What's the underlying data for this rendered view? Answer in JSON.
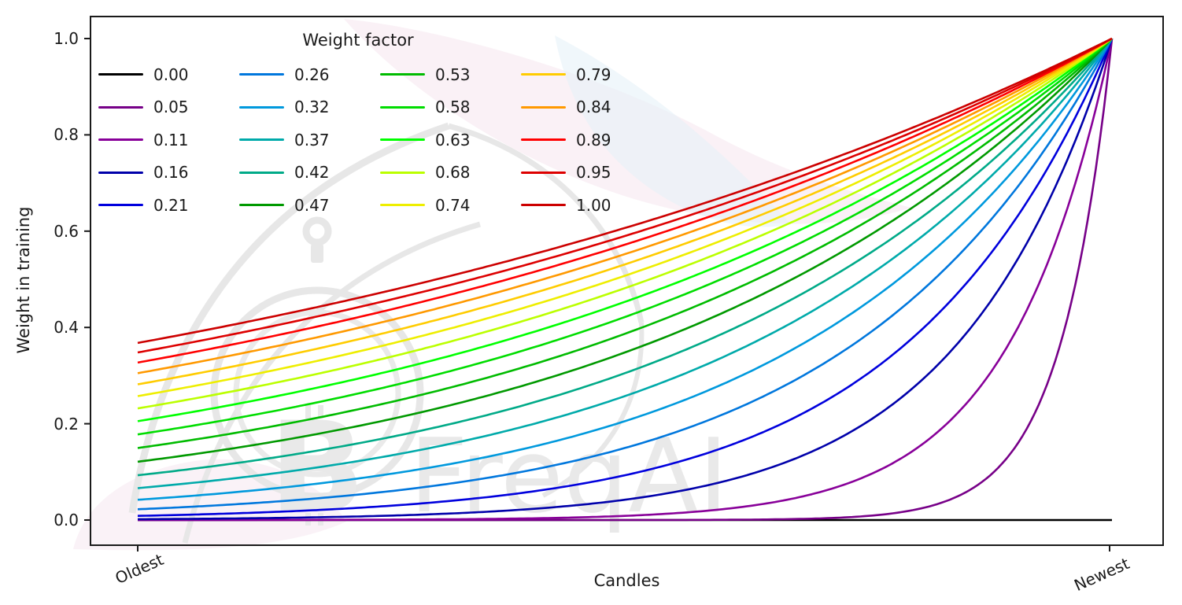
{
  "figure": {
    "background": "#ffffff",
    "watermark": {
      "text": "FreqAI",
      "bitcoin_symbol": "B",
      "text_color": "#e9e9e9",
      "logo_stroke_color": "#e7e7e7",
      "accent_pink": "#f5e3ee",
      "accent_blue": "#e3f0f7",
      "logo_name": "freqtrade-stopwatch-logo"
    }
  },
  "chart_data": {
    "type": "line",
    "title": "",
    "xlabel": "Candles",
    "ylabel": "Weight in training",
    "x_tick_labels": [
      "Oldest",
      "Newest"
    ],
    "y_ticks": [
      "0.0",
      "0.2",
      "0.4",
      "0.6",
      "0.8",
      "1.0"
    ],
    "ylim": [
      0,
      1
    ],
    "x_range": [
      0,
      1
    ],
    "grid": false,
    "legend": {
      "title": "Weight factor",
      "position": "upper left",
      "columns": 4,
      "rows": 5
    },
    "formula": "weight(x) = exp(-(1 - x) / factor) for x in [0,1] (x=0 oldest candle, x=1 newest); factor = 0 gives weight 0 everywhere",
    "sampled_x": [
      0,
      0.1,
      0.2,
      0.3,
      0.4,
      0.5,
      0.6,
      0.7,
      0.8,
      0.9,
      1.0
    ],
    "series": [
      {
        "label": "0.00",
        "factor": 0.0,
        "color": "#000000",
        "sampled_values": [
          0,
          0,
          0,
          0,
          0,
          0,
          0,
          0,
          0,
          0,
          0
        ]
      },
      {
        "label": "0.05",
        "factor": 0.0526,
        "color": "#770088",
        "sampled_values": [
          0,
          0,
          0,
          0,
          0,
          0.0001,
          0.0005,
          0.0033,
          0.0224,
          0.1496,
          1
        ]
      },
      {
        "label": "0.11",
        "factor": 0.1053,
        "color": "#880099",
        "sampled_values": [
          0.0001,
          0.0002,
          0.0005,
          0.0013,
          0.0033,
          0.0087,
          0.0224,
          0.0578,
          0.1496,
          0.3867,
          1
        ]
      },
      {
        "label": "0.16",
        "factor": 0.1579,
        "color": "#0000aa",
        "sampled_values": [
          0.0018,
          0.0033,
          0.0063,
          0.0119,
          0.0224,
          0.0421,
          0.0793,
          0.1496,
          0.2817,
          0.5309,
          1
        ]
      },
      {
        "label": "0.21",
        "factor": 0.2105,
        "color": "#0000dd",
        "sampled_values": [
          0.0087,
          0.0139,
          0.0224,
          0.036,
          0.0578,
          0.093,
          0.1496,
          0.2405,
          0.3867,
          0.6219,
          1
        ]
      },
      {
        "label": "0.26",
        "factor": 0.2632,
        "color": "#0077dd",
        "sampled_values": [
          0.0224,
          0.0327,
          0.0478,
          0.0699,
          0.1023,
          0.1496,
          0.2187,
          0.3198,
          0.4677,
          0.6839,
          1
        ]
      },
      {
        "label": "0.32",
        "factor": 0.3158,
        "color": "#0099dd",
        "sampled_values": [
          0.0421,
          0.0578,
          0.0793,
          0.1089,
          0.1496,
          0.2053,
          0.2817,
          0.3867,
          0.5309,
          0.7286,
          1
        ]
      },
      {
        "label": "0.37",
        "factor": 0.3684,
        "color": "#00aaaa",
        "sampled_values": [
          0.0663,
          0.0869,
          0.114,
          0.1496,
          0.1962,
          0.2574,
          0.3376,
          0.443,
          0.5811,
          0.7623,
          1
        ]
      },
      {
        "label": "0.42",
        "factor": 0.4211,
        "color": "#00aa88",
        "sampled_values": [
          0.093,
          0.118,
          0.1496,
          0.1897,
          0.2405,
          0.305,
          0.3867,
          0.4904,
          0.6219,
          0.7886,
          1
        ]
      },
      {
        "label": "0.47",
        "factor": 0.4737,
        "color": "#009900",
        "sampled_values": [
          0.1211,
          0.1496,
          0.1847,
          0.2281,
          0.2817,
          0.348,
          0.4298,
          0.5309,
          0.6556,
          0.8097,
          1
        ]
      },
      {
        "label": "0.53",
        "factor": 0.5263,
        "color": "#00bb00",
        "sampled_values": [
          0.1496,
          0.1809,
          0.2187,
          0.2645,
          0.3198,
          0.3867,
          0.4677,
          0.5655,
          0.6839,
          0.827,
          1
        ]
      },
      {
        "label": "0.58",
        "factor": 0.5789,
        "color": "#00dd00",
        "sampled_values": [
          0.1778,
          0.2113,
          0.2511,
          0.2984,
          0.3547,
          0.4216,
          0.5011,
          0.5956,
          0.7079,
          0.8414,
          1
        ]
      },
      {
        "label": "0.63",
        "factor": 0.6316,
        "color": "#00ff00",
        "sampled_values": [
          0.2053,
          0.2405,
          0.2817,
          0.3301,
          0.3867,
          0.4531,
          0.5309,
          0.6219,
          0.7286,
          0.8536,
          1
        ]
      },
      {
        "label": "0.68",
        "factor": 0.6842,
        "color": "#bbff00",
        "sampled_values": [
          0.2319,
          0.2684,
          0.3106,
          0.3595,
          0.4161,
          0.4815,
          0.5573,
          0.645,
          0.7466,
          0.864,
          1
        ]
      },
      {
        "label": "0.74",
        "factor": 0.7368,
        "color": "#eeee00",
        "sampled_values": [
          0.2574,
          0.2948,
          0.3376,
          0.3867,
          0.443,
          0.5073,
          0.5811,
          0.6656,
          0.7623,
          0.8731,
          1
        ]
      },
      {
        "label": "0.79",
        "factor": 0.7895,
        "color": "#ffcc00",
        "sampled_values": [
          0.2817,
          0.3198,
          0.363,
          0.412,
          0.4677,
          0.5309,
          0.6025,
          0.6839,
          0.7762,
          0.881,
          1
        ]
      },
      {
        "label": "0.84",
        "factor": 0.8421,
        "color": "#ff9900",
        "sampled_values": [
          0.305,
          0.3434,
          0.3867,
          0.4355,
          0.4904,
          0.5522,
          0.6219,
          0.7003,
          0.7886,
          0.888,
          1
        ]
      },
      {
        "label": "0.89",
        "factor": 0.8947,
        "color": "#ff0000",
        "sampled_values": [
          0.3271,
          0.3657,
          0.409,
          0.4573,
          0.5114,
          0.5719,
          0.6395,
          0.7151,
          0.7997,
          0.8942,
          1
        ]
      },
      {
        "label": "0.95",
        "factor": 0.9474,
        "color": "#dd0000",
        "sampled_values": [
          0.348,
          0.3867,
          0.4298,
          0.4777,
          0.5309,
          0.59,
          0.6556,
          0.7286,
          0.8097,
          0.8998,
          1
        ]
      },
      {
        "label": "1.00",
        "factor": 1.0,
        "color": "#cc0000",
        "sampled_values": [
          0.3679,
          0.4066,
          0.4493,
          0.4966,
          0.5488,
          0.6065,
          0.6703,
          0.7408,
          0.8187,
          0.9048,
          1
        ]
      }
    ]
  }
}
